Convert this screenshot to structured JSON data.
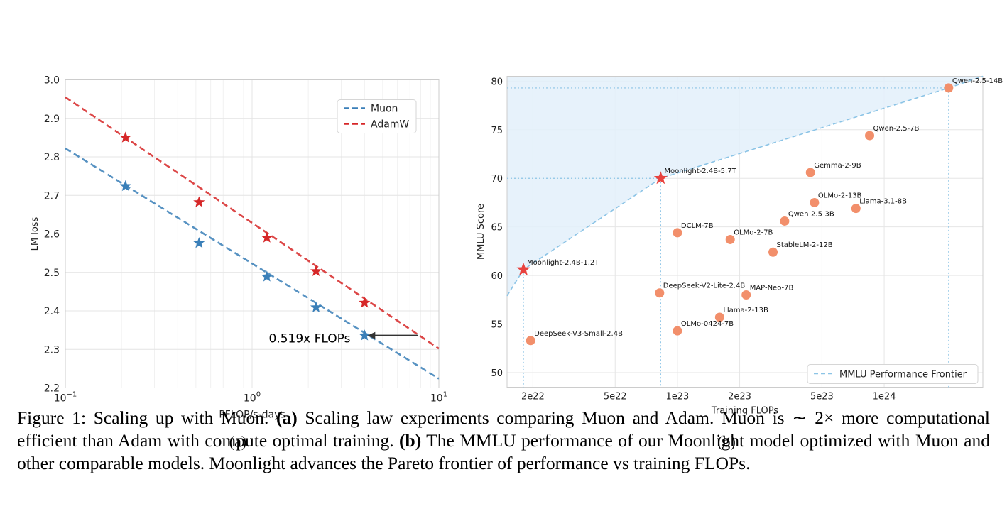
{
  "chart_data": [
    {
      "type": "line",
      "panel_label": "(a)",
      "xlabel": "PFLOP/s-days",
      "ylabel": "LM loss",
      "xscale": "log",
      "xlim": [
        0.1,
        10
      ],
      "ylim": [
        2.2,
        3.0
      ],
      "xticks": [
        {
          "v": 0.1,
          "base": "10",
          "exp": "−1"
        },
        {
          "v": 1,
          "base": "10",
          "exp": "0"
        },
        {
          "v": 10,
          "base": "10",
          "exp": "1"
        }
      ],
      "yticks": [
        "2.2",
        "2.3",
        "2.4",
        "2.5",
        "2.6",
        "2.7",
        "2.8",
        "2.9",
        "3.0"
      ],
      "grid": true,
      "legend_position": "top-right",
      "series": [
        {
          "name": "Muon",
          "color": "#3a7fb8",
          "x": [
            0.21,
            0.52,
            1.2,
            2.2,
            4.0
          ],
          "y": [
            2.724,
            2.576,
            2.489,
            2.409,
            2.336
          ],
          "fit": [
            [
              0.1,
              2.822
            ],
            [
              10,
              2.224
            ]
          ]
        },
        {
          "name": "AdamW",
          "color": "#d62728",
          "x": [
            0.21,
            0.52,
            1.2,
            2.2,
            4.0
          ],
          "y": [
            2.85,
            2.682,
            2.59,
            2.503,
            2.421
          ],
          "fit": [
            [
              0.1,
              2.955
            ],
            [
              10,
              2.302
            ]
          ]
        }
      ],
      "annotation": {
        "text": "0.519x FLOPs",
        "x_from": 7.7,
        "x_to": 4.0,
        "y": 2.336
      }
    },
    {
      "type": "scatter",
      "panel_label": "(b)",
      "xlabel": "Training FLOPs",
      "ylabel": "MMLU Score",
      "xscale": "log",
      "xlim": [
        1.5e+22,
        3e+24
      ],
      "ylim": [
        48.5,
        80.5
      ],
      "xticks": [
        {
          "v": 2e+22,
          "label": "2e22"
        },
        {
          "v": 5e+22,
          "label": "5e22"
        },
        {
          "v": 1e+23,
          "label": "1e23"
        },
        {
          "v": 2e+23,
          "label": "2e23"
        },
        {
          "v": 5e+23,
          "label": "5e23"
        },
        {
          "v": 1e+24,
          "label": "1e24"
        }
      ],
      "yticks": [
        "50",
        "55",
        "60",
        "65",
        "70",
        "75",
        "80"
      ],
      "grid": true,
      "legend": "MMLU Performance Frontier",
      "legend_position": "bottom-right",
      "points": [
        {
          "label": "Qwen-2.5-14B",
          "x": 2.05e+24,
          "y": 79.3,
          "moonlight": false
        },
        {
          "label": "Qwen-2.5-7B",
          "x": 8.5e+23,
          "y": 74.4,
          "moonlight": false
        },
        {
          "label": "Gemma-2-9B",
          "x": 4.4e+23,
          "y": 70.6,
          "moonlight": false
        },
        {
          "label": "OLMo-2-13B",
          "x": 4.6e+23,
          "y": 67.5,
          "moonlight": false
        },
        {
          "label": "Llama-3.1-8B",
          "x": 7.3e+23,
          "y": 66.9,
          "moonlight": false
        },
        {
          "label": "Qwen-2.5-3B",
          "x": 3.3e+23,
          "y": 65.6,
          "moonlight": false
        },
        {
          "label": "DCLM-7B",
          "x": 1e+23,
          "y": 64.4,
          "moonlight": false
        },
        {
          "label": "OLMo-2-7B",
          "x": 1.8e+23,
          "y": 63.7,
          "moonlight": false
        },
        {
          "label": "StableLM-2-12B",
          "x": 2.9e+23,
          "y": 62.4,
          "moonlight": false
        },
        {
          "label": "DeepSeek-V2-Lite-2.4B",
          "x": 8.2e+22,
          "y": 58.2,
          "moonlight": false
        },
        {
          "label": "MAP-Neo-7B",
          "x": 2.15e+23,
          "y": 58.0,
          "moonlight": false
        },
        {
          "label": "Llama-2-13B",
          "x": 1.6e+23,
          "y": 55.7,
          "moonlight": false
        },
        {
          "label": "OLMo-0424-7B",
          "x": 1e+23,
          "y": 54.3,
          "moonlight": false
        },
        {
          "label": "DeepSeek-V3-Small-2.4B",
          "x": 1.95e+22,
          "y": 53.3,
          "moonlight": false
        },
        {
          "label": "Moonlight-2.4B-1.2T",
          "x": 1.8e+22,
          "y": 60.6,
          "moonlight": true
        },
        {
          "label": "Moonlight-2.4B-5.7T",
          "x": 8.3e+22,
          "y": 70.0,
          "moonlight": true
        }
      ],
      "frontier": [
        [
          1.5e+22,
          57.9
        ],
        [
          1.8e+22,
          60.6
        ],
        [
          8.3e+22,
          70.0
        ],
        [
          2.05e+24,
          79.3
        ],
        [
          3e+24,
          80.5
        ]
      ]
    }
  ],
  "caption": {
    "prefix": "Figure 1: Scaling up with Muon. ",
    "a_label": "(a)",
    "a_text": " Scaling law experiments comparing Muon and Adam. Muon is ",
    "approx": "∼ 2×",
    "a_text2": " more computational efficient than Adam with compute optimal training. ",
    "b_label": "(b)",
    "b_text": " The MMLU performance of our Moonlight model optimized with Muon and other comparable models. Moonlight advances the Pareto frontier of performance vs training FLOPs."
  },
  "colors": {
    "moonlight_star": "#e8433f",
    "model_dot": "#f28f6b",
    "frontier_line": "#8cc4e6",
    "frontier_fill": "#e3f0fa"
  }
}
